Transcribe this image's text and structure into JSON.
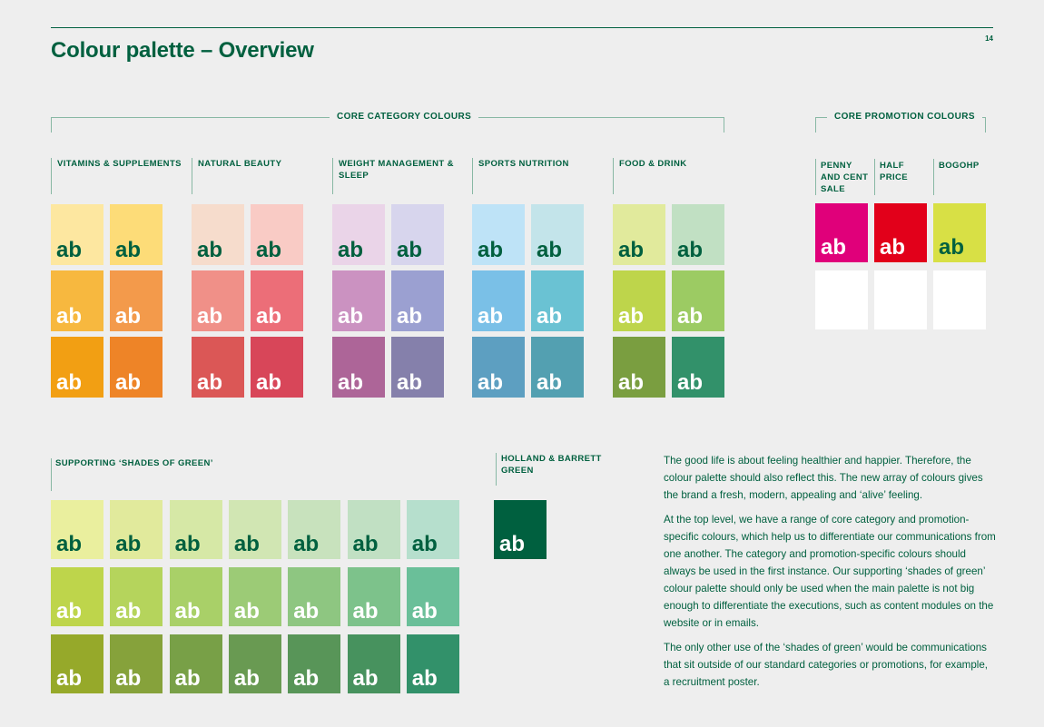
{
  "page": {
    "title": "Colour palette – Overview",
    "page_number": "14",
    "core_category_header": "CORE CATEGORY COLOURS",
    "core_promotion_header": "CORE PROMOTION COLOURS",
    "swatch_text": "ab"
  },
  "categories": [
    {
      "label": "VITAMINS & SUPPLEMENTS",
      "colors": [
        "#fde7a0",
        "#fddc78",
        "#f7b83f",
        "#f39a4b",
        "#f29f13",
        "#ee8427"
      ],
      "text": [
        "#00603f",
        "#00603f",
        "#ffffff",
        "#ffffff",
        "#ffffff",
        "#ffffff"
      ]
    },
    {
      "label": "NATURAL BEAUTY",
      "colors": [
        "#f6dccc",
        "#f9cbc5",
        "#f09088",
        "#ec6e78",
        "#db5756",
        "#d84659"
      ],
      "text": [
        "#00603f",
        "#00603f",
        "#ffffff",
        "#ffffff",
        "#ffffff",
        "#ffffff"
      ]
    },
    {
      "label": "WEIGHT MANAGEMENT & SLEEP",
      "colors": [
        "#ead4e8",
        "#d7d5ed",
        "#cb92c1",
        "#9ba0d1",
        "#ad6598",
        "#8580ab"
      ],
      "text": [
        "#00603f",
        "#00603f",
        "#ffffff",
        "#ffffff",
        "#ffffff",
        "#ffffff"
      ]
    },
    {
      "label": "SPORTS NUTRITION",
      "colors": [
        "#bee3f7",
        "#c3e4ea",
        "#7ac0e7",
        "#6ac2d3",
        "#5d9fc1",
        "#53a0b1"
      ],
      "text": [
        "#00603f",
        "#00603f",
        "#ffffff",
        "#ffffff",
        "#ffffff",
        "#ffffff"
      ]
    },
    {
      "label": "FOOD & DRINK",
      "colors": [
        "#e1ea9c",
        "#c1e0c3",
        "#bed54b",
        "#9ccb63",
        "#7a9e40",
        "#32916a"
      ],
      "text": [
        "#00603f",
        "#00603f",
        "#ffffff",
        "#ffffff",
        "#ffffff",
        "#ffffff"
      ]
    }
  ],
  "promotions": [
    {
      "label": "PENNY AND CENT SALE",
      "color": "#e0007a"
    },
    {
      "label": "HALF PRICE",
      "color": "#e2001a"
    },
    {
      "label": "BOGOHP",
      "color": "#d8e045"
    }
  ],
  "promo_text_colors": [
    "#ffffff",
    "#ffffff",
    "#00603f"
  ],
  "greens_label": "SUPPORTING ‘SHADES OF GREEN’",
  "greens": {
    "row1": [
      "#eaef9e",
      "#e1ea9c",
      "#d6e8a6",
      "#d1e6b3",
      "#c8e2bd",
      "#c1e0c3",
      "#b6dfcd"
    ],
    "row2": [
      "#bed54b",
      "#b5d45c",
      "#a9d068",
      "#9ccb76",
      "#8ec681",
      "#7dc28b",
      "#6abf99"
    ],
    "row3": [
      "#96a92a",
      "#86a23b",
      "#78a047",
      "#699a52",
      "#589558",
      "#47925e",
      "#32916a"
    ]
  },
  "hb_label": "HOLLAND & BARRETT GREEN",
  "hb_color": "#00603f",
  "paragraphs": [
    "The good life is about feeling healthier and happier. Therefore, the colour palette should also reflect this. The new array of colours gives the brand a fresh, modern, appealing and ‘alive’ feeling.",
    "At the top level, we have a range of core category and promotion-specific colours, which help us to differentiate our communications from one another. The category and promotion-specific colours should always be used in the first instance. Our supporting ‘shades of green’ colour palette should only be used when the main palette is not big enough to differentiate the executions, such as content modules on the website or in emails.",
    "The only other use of the ‘shades of green’ would be communications that sit outside of our standard categories or promotions, for example, a recruitment poster."
  ]
}
